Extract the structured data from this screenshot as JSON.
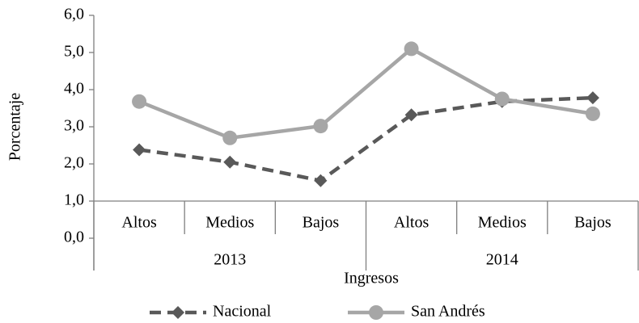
{
  "chart_data": {
    "type": "line",
    "y_label": "Porcentaje",
    "x_label": "Ingresos",
    "categories": [
      "Altos",
      "Medios",
      "Bajos",
      "Altos",
      "Medios",
      "Bajos"
    ],
    "groups": [
      "2013",
      "2014"
    ],
    "series": [
      {
        "name": "Nacional",
        "color": "#595959",
        "line_style": "dashed",
        "marker": "diamond",
        "values": [
          2.38,
          2.05,
          1.55,
          3.32,
          3.68,
          3.78
        ]
      },
      {
        "name": "San Andrés",
        "color": "#a6a6a6",
        "line_style": "solid",
        "marker": "circle",
        "values": [
          3.68,
          2.7,
          3.02,
          5.1,
          3.75,
          3.35
        ]
      }
    ],
    "ylim": [
      0,
      6
    ],
    "yticks": [
      {
        "value": 0,
        "label": "0,0"
      },
      {
        "value": 1,
        "label": "1,0"
      },
      {
        "value": 2,
        "label": "2,0"
      },
      {
        "value": 3,
        "label": "3,0"
      },
      {
        "value": 4,
        "label": "4,0"
      },
      {
        "value": 5,
        "label": "5,0"
      },
      {
        "value": 6,
        "label": "6,0"
      }
    ],
    "x_axis_crossing": 1,
    "legend": "bottom",
    "grid": false
  }
}
